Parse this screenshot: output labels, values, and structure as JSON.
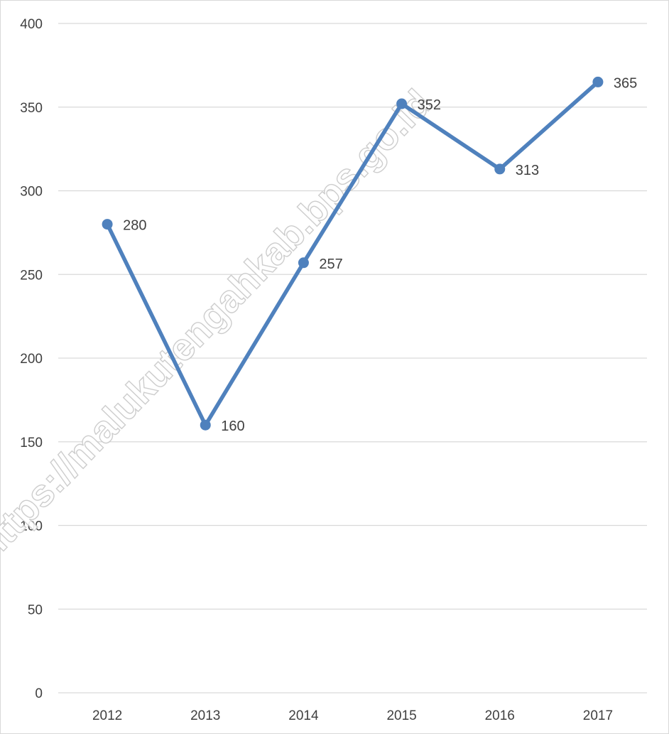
{
  "chart_data": {
    "type": "line",
    "categories": [
      "2012",
      "2013",
      "2014",
      "2015",
      "2016",
      "2017"
    ],
    "values": [
      280,
      160,
      257,
      352,
      313,
      365
    ],
    "data_labels": [
      "280",
      "160",
      "257",
      "352",
      "313",
      "365"
    ],
    "ylim": [
      0,
      400
    ],
    "yticks": [
      0,
      50,
      100,
      150,
      200,
      250,
      300,
      350,
      400
    ],
    "ytick_labels": [
      "0",
      "50",
      "100",
      "150",
      "200",
      "250",
      "300",
      "350",
      "400"
    ],
    "grid": true,
    "legend": "none",
    "line_color": "#4f81bd",
    "gridline_color": "#d9d9d9",
    "label_color": "#404040"
  },
  "watermark": {
    "text": "https://malukutengahkab.bps.go.id"
  }
}
